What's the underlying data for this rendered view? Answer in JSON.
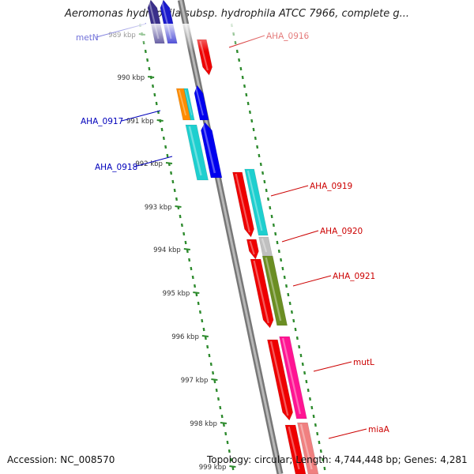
{
  "header": {
    "title": "Aeromonas hydrophila subsp. hydrophila ATCC 7966, complete g..."
  },
  "footer": {
    "accession": "Accession: NC_008570",
    "topology": "Topology: circular; Length: 4,744,448 bp; Genes: 4,281"
  },
  "scale": {
    "ticks": [
      "989 kbp",
      "990 kbp",
      "991 kbp",
      "992 kbp",
      "993 kbp",
      "994 kbp",
      "995 kbp",
      "996 kbp",
      "997 kbp",
      "998 kbp",
      "999 kbp"
    ]
  },
  "genes": [
    {
      "label": "metN",
      "strand": "minus",
      "color": "#3a2f8a"
    },
    {
      "label": "AHA_0916",
      "strand": "plus",
      "color": "#ee0000"
    },
    {
      "label": "AHA_0917",
      "strand": "minus",
      "color": "#0000ee"
    },
    {
      "label": "AHA_0918",
      "strand": "minus",
      "color": "#0000ee"
    },
    {
      "label": "AHA_0919",
      "strand": "plus",
      "color": "#ee0000"
    },
    {
      "label": "AHA_0920",
      "strand": "plus",
      "color": "#ee0000"
    },
    {
      "label": "AHA_0921",
      "strand": "plus",
      "color": "#ee0000"
    },
    {
      "label": "mutL",
      "strand": "plus",
      "color": "#ee0000"
    },
    {
      "label": "miaA",
      "strand": "plus",
      "color": "#ee0000"
    }
  ],
  "colors": {
    "backbone": "#8c8c8c",
    "tick": "#2e8b2e",
    "plus_label": "#cc0000",
    "minus_label": "#0000bb",
    "cog_cyan": "#1ecfcf",
    "cog_olive": "#6b8e23",
    "cog_gray": "#c0c0c0",
    "cog_pink": "#ff1493",
    "cog_salmon": "#f08080",
    "cog_orange": "#ff8c00"
  }
}
